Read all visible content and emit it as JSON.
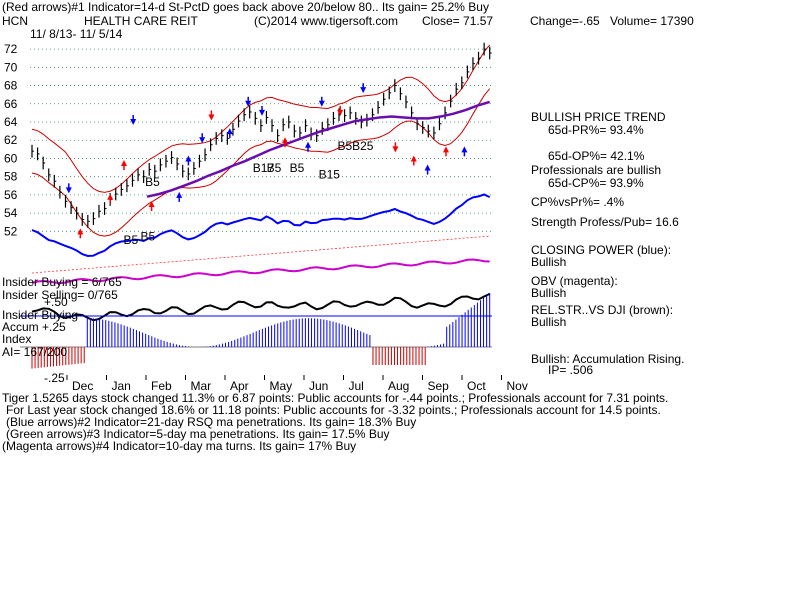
{
  "header": {
    "line1": "(Red arrows)#1 Indicator=14-d St-PctD goes back above 20/below 80.. Its gain= 25.2% Buy",
    "ticker": "HCN",
    "name": "HEALTH CARE REIT",
    "copyright": "(C)2014 www.tigersoft.com",
    "close": "Close=  71.57",
    "change": "Change=-.65",
    "volume": "Volume= 17390",
    "date_range": "11/ 8/13- 11/ 5/14"
  },
  "right_panel": {
    "trend": "BULLISH PRICE TREND",
    "pr": "65d-PR%= 93.4%",
    "op": "65d-OP%= 42.1%",
    "pros": "Professionals are bullish",
    "cp": "65d-CP%= 93.9%",
    "cpvspr": "CP%vsPr%=  .4%",
    "strength": "Strength Profess/Pub= 16.6",
    "closing_power": "CLOSING POWER (blue):",
    "closing_power_val": "Bullish",
    "obv": "OBV (magenta):",
    "obv_val": "Bullish",
    "relstr": "REL.STR..VS DJI (brown):",
    "relstr_val": "Bullish",
    "accum": "Bullish: Accumulation Rising.",
    "ip": "IP=  .506"
  },
  "left_panel": {
    "insider_buying": "Insider Buying = 6/765",
    "insider_selling": "Insider Selling= 0/765",
    "insider_buying2": "Insider Buying",
    "accum": "Accum  +.25",
    "index": "Index",
    "ai": "AI= 167/200",
    "plus50": "+.50",
    "minus25": "-.25"
  },
  "footer": {
    "line1": "Tiger 1.5265 days stock changed  11.3% or  6.87 points:  Public accounts for -.44 points.;  Professionals account for  7.31 points.",
    "line2": "For Last year stock changed  18.6% or  11.18 points:  Public accounts for -3.32 points.;  Professionals account for  14.5 points.",
    "line3": "(Blue arrows)#2 Indicator=21-day RSQ ma penetrations. Its gain= 18.3% Buy",
    "line4": "(Green arrows)#3 Indicator=5-day ma penetrations. Its gain= 17.5% Buy",
    "line5": "(Magenta arrows)#4 Indicator=10-day ma turns. Its gain= 17% Buy"
  },
  "signals": [
    {
      "label": "B5",
      "x": 0.246,
      "y": 57
    },
    {
      "label": "B5",
      "x": 0.236,
      "y": 51
    },
    {
      "label": "B5",
      "x": 0.199,
      "y": 50.6
    },
    {
      "label": "B17",
      "x": 0.48,
      "y": 58.5
    },
    {
      "label": "B5",
      "x": 0.51,
      "y": 58.5
    },
    {
      "label": "B5",
      "x": 0.56,
      "y": 58.5
    },
    {
      "label": "B15",
      "x": 0.623,
      "y": 57.8
    },
    {
      "label": "B5B25",
      "x": 0.664,
      "y": 60.9
    }
  ],
  "arrow_colors": {
    "red": "#ff0000",
    "blue": "#0000ff"
  },
  "chart_data": {
    "type": "line",
    "xaxis_months": [
      "Dec",
      "Jan",
      "Feb",
      "Mar",
      "Apr",
      "May",
      "Jun",
      "Jul",
      "Aug",
      "Sep",
      "Oct",
      "Nov"
    ],
    "yticks": [
      52,
      54,
      56,
      58,
      60,
      62,
      64,
      66,
      68,
      70,
      72
    ],
    "ylim": [
      50.5,
      73
    ],
    "price_close": [
      60.8,
      60.5,
      59.5,
      58.2,
      57.5,
      56.3,
      55.3,
      54.6,
      54.0,
      53.3,
      53.1,
      53.4,
      54.2,
      54.5,
      55.5,
      56.1,
      56.6,
      57.0,
      57.6,
      58.2,
      58.0,
      58.8,
      58.6,
      59.3,
      59.7,
      60.1,
      59.4,
      58.6,
      58.3,
      58.9,
      59.7,
      60.4,
      61.5,
      62.2,
      62.5,
      62.2,
      63.2,
      64.1,
      64.8,
      65.1,
      64.4,
      63.6,
      64.5,
      63.6,
      62.5,
      63.7,
      64.0,
      63.0,
      62.8,
      63.6,
      62.7,
      62.5,
      63.3,
      63.7,
      64.4,
      64.8,
      64.7,
      65.0,
      64.4,
      64.0,
      64.2,
      64.8,
      65.6,
      66.5,
      67.2,
      68.0,
      67.1,
      66.2,
      65.0,
      63.8,
      63.4,
      63.0,
      62.8,
      63.8,
      65.0,
      66.3,
      67.6,
      68.3,
      69.5,
      70.4,
      71.0,
      72.0,
      71.57
    ],
    "rsq_ma": [
      55.8,
      56.1,
      56.5,
      57.0,
      57.5,
      58.1,
      58.6,
      59.2,
      59.7,
      60.3,
      60.9,
      61.4,
      61.9,
      62.4,
      62.9,
      63.3,
      63.7,
      64.1,
      64.3,
      64.5,
      64.6,
      64.5,
      64.4,
      64.4,
      64.6,
      64.9,
      65.3,
      65.8,
      66.2
    ],
    "strength_pub": 16.6,
    "accumulation_index": 0.506,
    "pr_pct": 93.4,
    "op_pct": 42.1,
    "cp_pct": 93.9
  }
}
